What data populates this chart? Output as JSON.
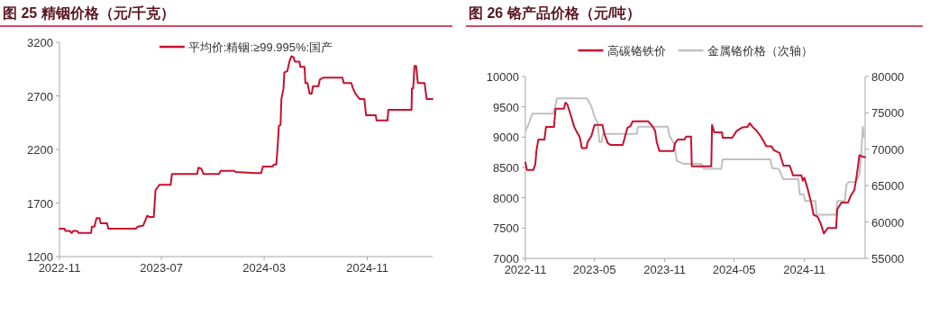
{
  "chart_data": [
    {
      "type": "line",
      "title": "图 25 精铟价格（元/千克）",
      "legend": "top",
      "xlim": [
        "2022-11-01",
        "2025-04-05"
      ],
      "xticks": [
        "2022-11",
        "2023-07",
        "2024-03",
        "2024-11"
      ],
      "ylim": [
        1200,
        3200
      ],
      "yticks": [
        1200,
        1700,
        2200,
        2700,
        3200
      ],
      "series": [
        {
          "name": "平均价:精铟:≥99.995%:国产",
          "color": "#c8102e",
          "x": [
            "2022-11-01",
            "2022-11-13",
            "2022-11-15",
            "2022-11-25",
            "2022-11-30",
            "2022-12-04",
            "2022-12-13",
            "2022-12-16",
            "2023-01-15",
            "2023-01-17",
            "2023-01-23",
            "2023-01-28",
            "2023-02-04",
            "2023-02-07",
            "2023-02-22",
            "2023-02-25",
            "2023-05-01",
            "2023-05-06",
            "2023-05-19",
            "2023-05-28",
            "2023-06-03",
            "2023-06-13",
            "2023-06-17",
            "2023-06-26",
            "2023-07-23",
            "2023-07-26",
            "2023-09-24",
            "2023-09-27",
            "2023-10-04",
            "2023-10-09",
            "2023-11-15",
            "2023-11-19",
            "2023-12-21",
            "2023-12-24",
            "2024-02-10",
            "2024-02-23",
            "2024-02-27",
            "2024-03-21",
            "2024-03-24",
            "2024-03-30",
            "2024-04-02",
            "2024-04-05",
            "2024-04-09",
            "2024-04-11",
            "2024-04-16",
            "2024-04-18",
            "2024-04-25",
            "2024-04-30",
            "2024-05-05",
            "2024-05-10",
            "2024-05-13",
            "2024-05-24",
            "2024-05-26",
            "2024-06-05",
            "2024-06-07",
            "2024-06-12",
            "2024-06-17",
            "2024-06-22",
            "2024-06-25",
            "2024-07-08",
            "2024-07-11",
            "2024-07-19",
            "2024-09-03",
            "2024-09-06",
            "2024-09-24",
            "2024-09-28",
            "2024-10-04",
            "2024-10-14",
            "2024-10-25",
            "2024-10-29",
            "2024-11-21",
            "2024-11-23",
            "2024-12-19",
            "2024-12-21",
            "2025-02-14",
            "2025-02-15",
            "2025-02-18",
            "2025-02-21",
            "2025-02-25",
            "2025-03-01",
            "2025-03-17",
            "2025-03-22",
            "2025-04-05"
          ],
          "values": [
            1460,
            1460,
            1440,
            1440,
            1420,
            1440,
            1440,
            1420,
            1420,
            1480,
            1480,
            1560,
            1560,
            1510,
            1510,
            1460,
            1460,
            1480,
            1490,
            1580,
            1570,
            1570,
            1820,
            1870,
            1870,
            1970,
            1970,
            2030,
            2020,
            1970,
            1970,
            2000,
            2000,
            1990,
            1980,
            1980,
            2040,
            2040,
            2060,
            2060,
            2220,
            2420,
            2430,
            2670,
            2770,
            2920,
            2930,
            3020,
            3070,
            3060,
            3020,
            3020,
            2970,
            2970,
            2820,
            2820,
            2720,
            2720,
            2790,
            2790,
            2850,
            2870,
            2870,
            2820,
            2820,
            2770,
            2720,
            2670,
            2670,
            2520,
            2520,
            2470,
            2470,
            2570,
            2570,
            2770,
            2770,
            2980,
            2980,
            2820,
            2820,
            2670,
            2670
          ]
        }
      ]
    },
    {
      "type": "line",
      "title": "图 26 铬产品价格（元/吨）",
      "legend": "top",
      "xlim": [
        "2022-11-01",
        "2025-04-09"
      ],
      "xticks": [
        "2022-11",
        "2023-05",
        "2023-11",
        "2024-05",
        "2024-11"
      ],
      "ylim": [
        7000,
        10000
      ],
      "yticks": [
        7000,
        7500,
        8000,
        8500,
        9000,
        9500,
        10000
      ],
      "y2lim": [
        55000,
        80000
      ],
      "y2ticks": [
        55000,
        60000,
        65000,
        70000,
        75000,
        80000
      ],
      "series": [
        {
          "name": "高碳铬铁价",
          "color": "#c8102e",
          "x": [
            "2022-11-01",
            "2022-11-05",
            "2022-11-22",
            "2022-11-27",
            "2022-11-30",
            "2022-12-05",
            "2022-12-21",
            "2022-12-25",
            "2023-01-15",
            "2023-01-19",
            "2023-02-10",
            "2023-02-14",
            "2023-02-19",
            "2023-03-01",
            "2023-03-09",
            "2023-03-17",
            "2023-03-23",
            "2023-03-29",
            "2023-04-10",
            "2023-04-13",
            "2023-04-23",
            "2023-05-01",
            "2023-05-22",
            "2023-05-27",
            "2023-06-05",
            "2023-06-13",
            "2023-07-14",
            "2023-07-18",
            "2023-07-26",
            "2023-08-03",
            "2023-08-09",
            "2023-09-19",
            "2023-09-30",
            "2023-10-07",
            "2023-10-11",
            "2023-10-18",
            "2023-11-24",
            "2023-11-28",
            "2023-12-05",
            "2023-12-23",
            "2023-12-27",
            "2024-01-09",
            "2024-01-11",
            "2024-03-02",
            "2024-03-04",
            "2024-03-10",
            "2024-03-30",
            "2024-04-01",
            "2024-04-26",
            "2024-05-07",
            "2024-05-22",
            "2024-06-05",
            "2024-06-11",
            "2024-06-18",
            "2024-06-28",
            "2024-07-09",
            "2024-07-20",
            "2024-07-24",
            "2024-08-07",
            "2024-08-11",
            "2024-08-18",
            "2024-08-28",
            "2024-09-07",
            "2024-09-23",
            "2024-09-27",
            "2024-10-02",
            "2024-10-24",
            "2024-10-28",
            "2024-11-01",
            "2024-11-09",
            "2024-11-19",
            "2024-11-25",
            "2024-12-05",
            "2024-12-14",
            "2024-12-22",
            "2025-01-01",
            "2025-01-23",
            "2025-01-26",
            "2025-02-06",
            "2025-02-23",
            "2025-03-03",
            "2025-03-12",
            "2025-03-19",
            "2025-03-25",
            "2025-04-02",
            "2025-04-06",
            "2025-04-09"
          ],
          "values": [
            8580,
            8460,
            8460,
            8550,
            8780,
            8960,
            8960,
            9170,
            9170,
            9470,
            9470,
            9570,
            9540,
            9340,
            9170,
            9070,
            9010,
            8820,
            8820,
            8920,
            9020,
            9200,
            9200,
            9050,
            8900,
            8870,
            8870,
            8960,
            9150,
            9180,
            9260,
            9260,
            9180,
            9100,
            8920,
            8770,
            8770,
            8900,
            8960,
            8960,
            9010,
            9010,
            8520,
            8520,
            9200,
            9080,
            9080,
            8990,
            8990,
            9100,
            9160,
            9170,
            9230,
            9170,
            9110,
            9020,
            8900,
            8850,
            8850,
            8800,
            8770,
            8740,
            8530,
            8530,
            8470,
            8370,
            8370,
            8280,
            8330,
            8160,
            7910,
            7720,
            7690,
            7570,
            7410,
            7500,
            7500,
            7810,
            7920,
            7920,
            8040,
            8130,
            8410,
            8700,
            8680,
            8670,
            8670
          ]
        },
        {
          "name": "金属铬价格（次轴）",
          "color": "#c0c0c0",
          "axis": "y2",
          "x": [
            "2022-11-01",
            "2022-11-09",
            "2022-11-19",
            "2023-01-13",
            "2023-01-19",
            "2023-01-23",
            "2023-04-11",
            "2023-04-23",
            "2023-05-01",
            "2023-05-09",
            "2023-05-14",
            "2023-05-20",
            "2023-05-23",
            "2023-08-20",
            "2023-08-23",
            "2023-11-09",
            "2023-11-13",
            "2023-11-25",
            "2023-12-03",
            "2023-12-20",
            "2024-02-05",
            "2024-02-12",
            "2024-03-28",
            "2024-04-01",
            "2024-08-03",
            "2024-08-09",
            "2024-08-26",
            "2024-09-03",
            "2024-09-07",
            "2024-10-16",
            "2024-10-20",
            "2024-10-30",
            "2024-11-03",
            "2024-11-30",
            "2024-12-03",
            "2025-01-23",
            "2025-01-26",
            "2025-02-15",
            "2025-02-19",
            "2025-02-25",
            "2025-03-15",
            "2025-03-19",
            "2025-03-25",
            "2025-03-30",
            "2025-04-03",
            "2025-04-06"
          ],
          "values": [
            72500,
            73400,
            74900,
            74900,
            76100,
            77000,
            77000,
            75900,
            74500,
            73700,
            71000,
            71000,
            72100,
            72100,
            73100,
            73100,
            71900,
            70800,
            68400,
            68000,
            68000,
            67300,
            67300,
            68600,
            68600,
            67400,
            67300,
            66300,
            65900,
            65900,
            63800,
            63800,
            62900,
            62900,
            61000,
            61000,
            62900,
            62900,
            65100,
            65500,
            65500,
            65900,
            66500,
            69400,
            73100,
            71700
          ]
        }
      ]
    }
  ]
}
